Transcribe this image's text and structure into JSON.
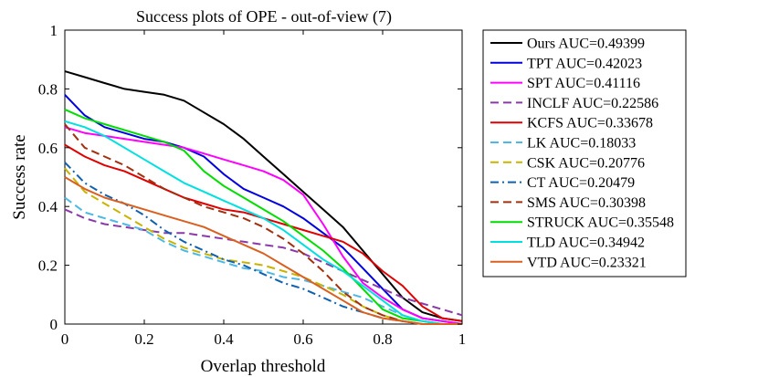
{
  "chart_data": {
    "type": "line",
    "title": "Success plots of OPE - out-of-view (7)",
    "xlabel": "Overlap threshold",
    "ylabel": "Success rate",
    "xlim": [
      0,
      1
    ],
    "ylim": [
      0,
      1
    ],
    "xticks": [
      0,
      0.2,
      0.4,
      0.6,
      0.8,
      1
    ],
    "yticks": [
      0,
      0.2,
      0.4,
      0.6,
      0.8,
      1
    ],
    "xtick_labels": [
      "0",
      "0.2",
      "0.4",
      "0.6",
      "0.8",
      "1"
    ],
    "ytick_labels": [
      "0",
      "0.2",
      "0.4",
      "0.6",
      "0.8",
      "1"
    ],
    "grid": false,
    "legend_position": "outside-right",
    "x": [
      0,
      0.05,
      0.1,
      0.15,
      0.2,
      0.25,
      0.3,
      0.35,
      0.4,
      0.45,
      0.5,
      0.55,
      0.6,
      0.65,
      0.7,
      0.75,
      0.8,
      0.85,
      0.9,
      0.95,
      1
    ],
    "series": [
      {
        "name": "Ours",
        "legend": "Ours AUC=0.49399",
        "color": "#000000",
        "dash": "solid",
        "values": [
          0.86,
          0.84,
          0.82,
          0.8,
          0.79,
          0.78,
          0.76,
          0.72,
          0.68,
          0.63,
          0.57,
          0.51,
          0.45,
          0.39,
          0.33,
          0.25,
          0.17,
          0.09,
          0.04,
          0.02,
          0.01
        ]
      },
      {
        "name": "TPT",
        "legend": "TPT AUC=0.42023",
        "color": "#0000e0",
        "dash": "solid",
        "values": [
          0.78,
          0.71,
          0.67,
          0.65,
          0.63,
          0.62,
          0.6,
          0.57,
          0.51,
          0.46,
          0.43,
          0.4,
          0.36,
          0.31,
          0.26,
          0.19,
          0.12,
          0.05,
          0.02,
          0.01,
          0.0
        ]
      },
      {
        "name": "SPT",
        "legend": "SPT AUC=0.41116",
        "color": "#ff00ff",
        "dash": "solid",
        "values": [
          0.67,
          0.65,
          0.64,
          0.63,
          0.62,
          0.61,
          0.6,
          0.58,
          0.56,
          0.54,
          0.52,
          0.49,
          0.44,
          0.34,
          0.23,
          0.14,
          0.09,
          0.05,
          0.02,
          0.01,
          0.0
        ]
      },
      {
        "name": "INCLF",
        "legend": "INCLF AUC=0.22586",
        "color": "#8a3aa8",
        "dash": "dash",
        "values": [
          0.39,
          0.36,
          0.34,
          0.33,
          0.32,
          0.31,
          0.31,
          0.3,
          0.29,
          0.28,
          0.27,
          0.26,
          0.24,
          0.21,
          0.18,
          0.15,
          0.12,
          0.09,
          0.07,
          0.05,
          0.03
        ]
      },
      {
        "name": "KCFS",
        "legend": "KCFS AUC=0.33678",
        "color": "#e00000",
        "dash": "solid",
        "values": [
          0.61,
          0.57,
          0.54,
          0.52,
          0.49,
          0.46,
          0.43,
          0.41,
          0.39,
          0.38,
          0.36,
          0.34,
          0.32,
          0.3,
          0.28,
          0.24,
          0.18,
          0.13,
          0.06,
          0.02,
          0.01
        ]
      },
      {
        "name": "LK",
        "legend": "LK AUC=0.18033",
        "color": "#4db8e6",
        "dash": "dash",
        "values": [
          0.43,
          0.38,
          0.36,
          0.34,
          0.32,
          0.28,
          0.25,
          0.23,
          0.21,
          0.19,
          0.18,
          0.16,
          0.15,
          0.13,
          0.11,
          0.09,
          0.06,
          0.03,
          0.01,
          0.0,
          0.0
        ]
      },
      {
        "name": "CSK",
        "legend": "CSK AUC=0.20776",
        "color": "#c8b400",
        "dash": "dash",
        "values": [
          0.53,
          0.45,
          0.41,
          0.37,
          0.33,
          0.29,
          0.26,
          0.24,
          0.22,
          0.21,
          0.2,
          0.18,
          0.16,
          0.13,
          0.1,
          0.06,
          0.03,
          0.01,
          0.0,
          0.0,
          0.0
        ]
      },
      {
        "name": "CT",
        "legend": "CT AUC=0.20479",
        "color": "#1060b0",
        "dash": "dashdot",
        "values": [
          0.55,
          0.48,
          0.44,
          0.41,
          0.37,
          0.32,
          0.28,
          0.25,
          0.22,
          0.2,
          0.17,
          0.14,
          0.12,
          0.09,
          0.06,
          0.04,
          0.02,
          0.01,
          0.0,
          0.0,
          0.0
        ]
      },
      {
        "name": "SMS",
        "legend": "SMS AUC=0.30398",
        "color": "#a03010",
        "dash": "dash",
        "values": [
          0.68,
          0.6,
          0.57,
          0.54,
          0.5,
          0.46,
          0.43,
          0.4,
          0.38,
          0.36,
          0.33,
          0.29,
          0.24,
          0.18,
          0.11,
          0.06,
          0.03,
          0.01,
          0.0,
          0.0,
          0.0
        ]
      },
      {
        "name": "STRUCK",
        "legend": "STRUCK AUC=0.35548",
        "color": "#00dd00",
        "dash": "solid",
        "values": [
          0.73,
          0.7,
          0.68,
          0.66,
          0.64,
          0.62,
          0.59,
          0.52,
          0.47,
          0.43,
          0.39,
          0.35,
          0.3,
          0.25,
          0.19,
          0.12,
          0.05,
          0.02,
          0.01,
          0.0,
          0.0
        ]
      },
      {
        "name": "TLD",
        "legend": "TLD AUC=0.34942",
        "color": "#00e0e0",
        "dash": "solid",
        "values": [
          0.69,
          0.67,
          0.64,
          0.6,
          0.56,
          0.52,
          0.48,
          0.45,
          0.42,
          0.39,
          0.36,
          0.32,
          0.27,
          0.22,
          0.18,
          0.13,
          0.08,
          0.03,
          0.01,
          0.0,
          0.0
        ]
      },
      {
        "name": "VTD",
        "legend": "VTD AUC=0.23321",
        "color": "#d96020",
        "dash": "solid",
        "values": [
          0.5,
          0.46,
          0.43,
          0.41,
          0.39,
          0.37,
          0.35,
          0.33,
          0.3,
          0.27,
          0.24,
          0.2,
          0.16,
          0.12,
          0.08,
          0.04,
          0.02,
          0.01,
          0.0,
          0.0,
          0.0
        ]
      }
    ]
  }
}
